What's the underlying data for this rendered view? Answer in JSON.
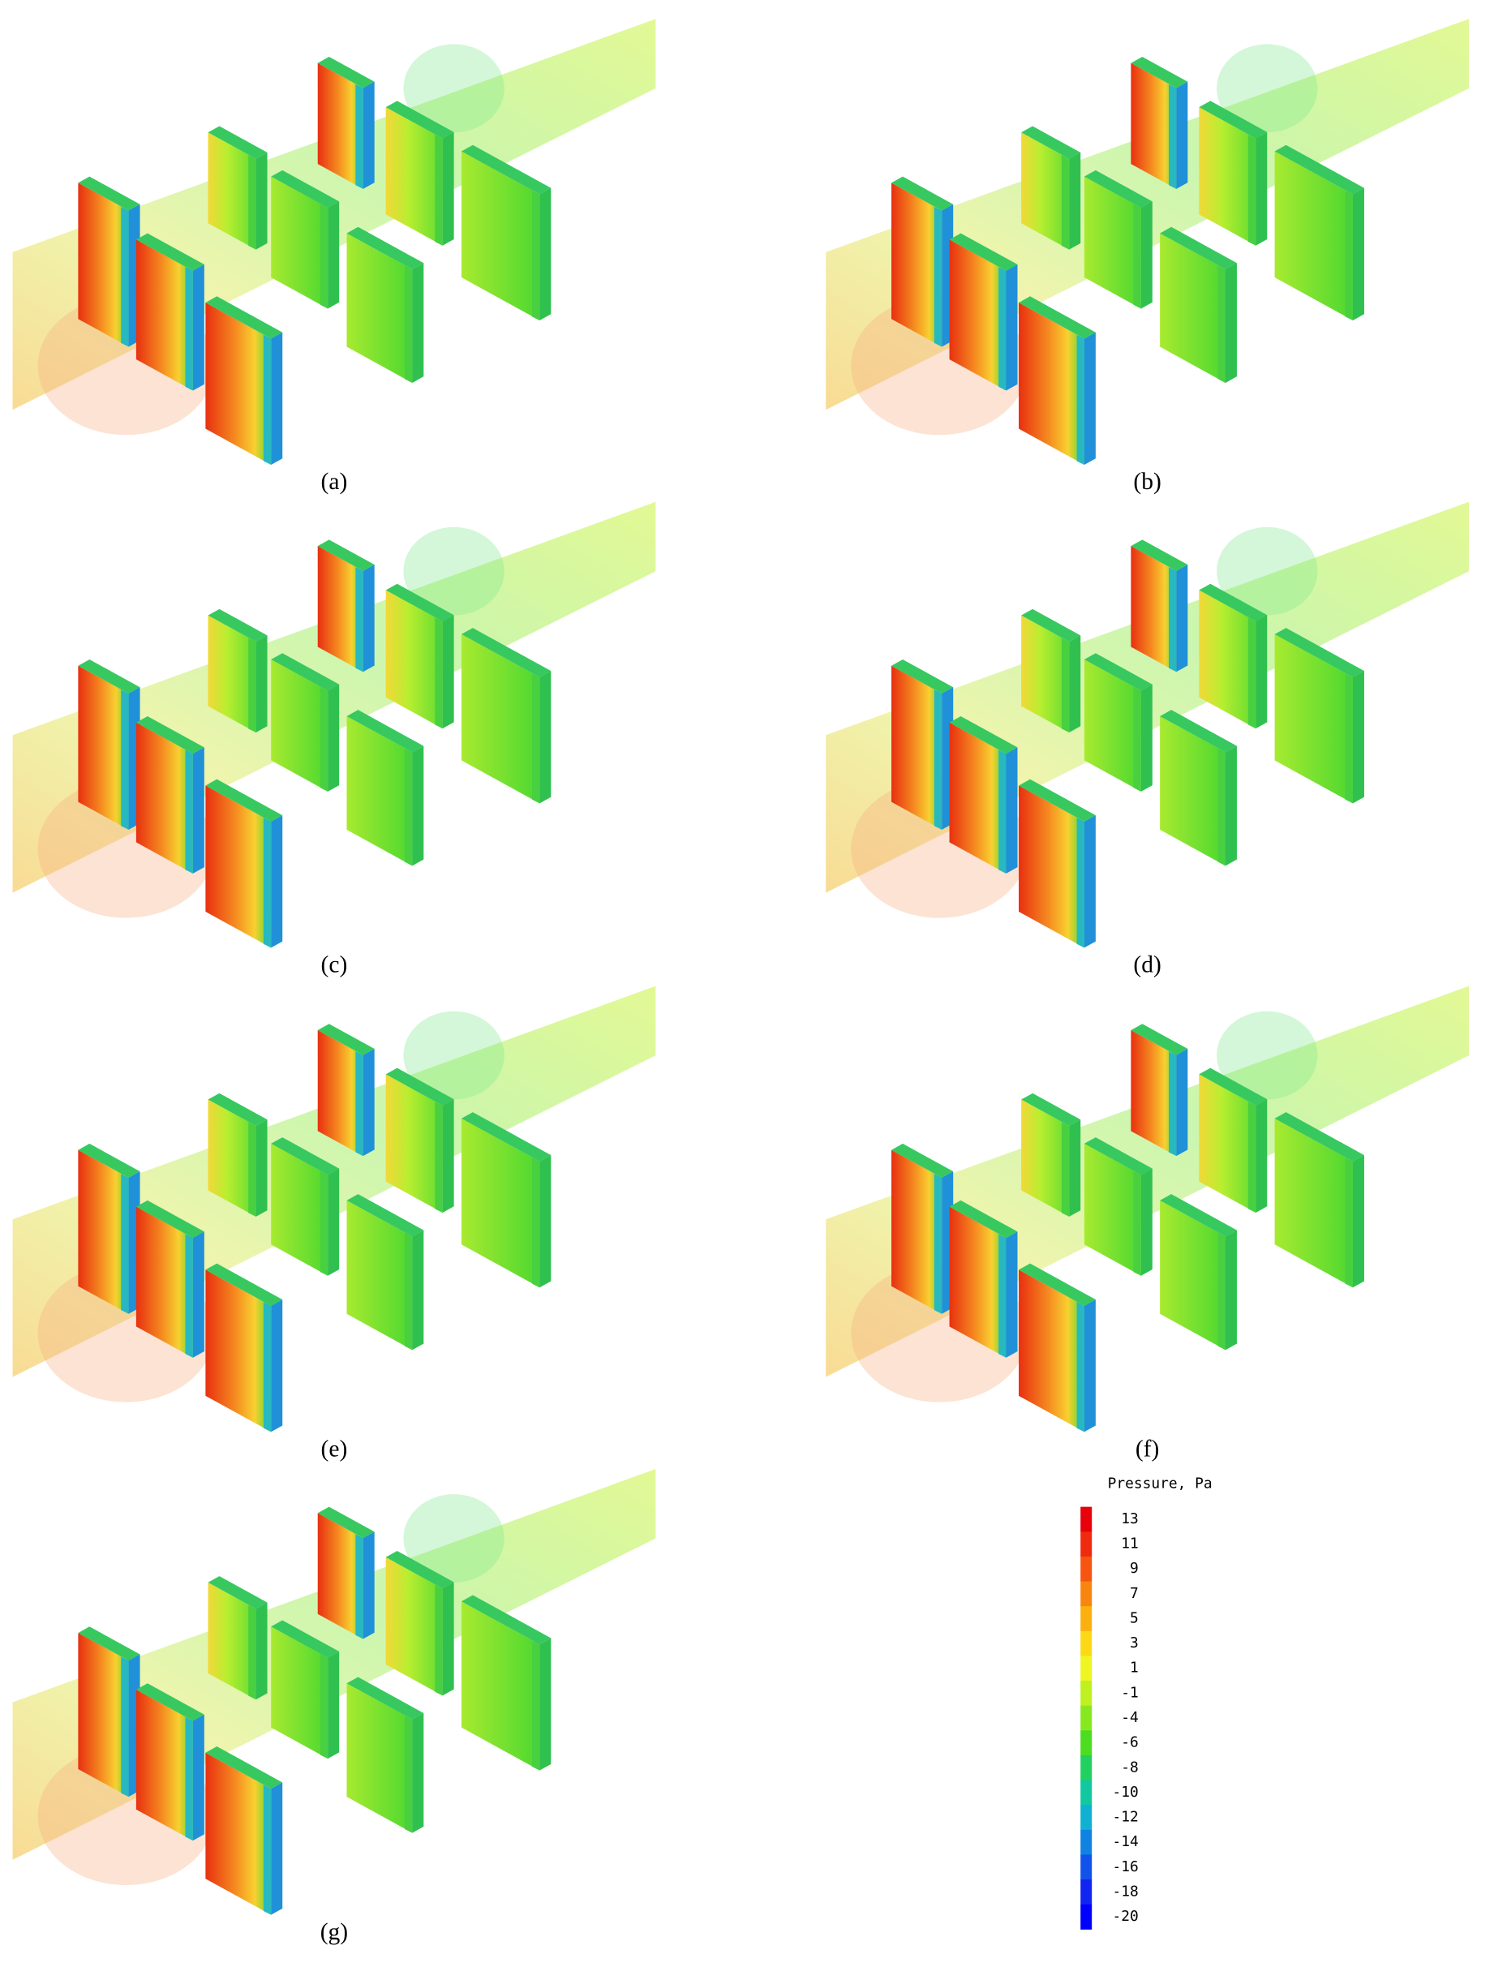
{
  "panels": [
    {
      "label": "(a)"
    },
    {
      "label": "(b)"
    },
    {
      "label": "(c)"
    },
    {
      "label": "(d)"
    },
    {
      "label": "(e)"
    },
    {
      "label": "(f)"
    },
    {
      "label": "(g)"
    }
  ],
  "colorbar": {
    "title": "Pressure, Pa",
    "ticks": [
      13,
      11,
      9,
      7,
      5,
      3,
      1,
      -1,
      -4,
      -6,
      -8,
      -10,
      -12,
      -14,
      -16,
      -18,
      -20
    ],
    "colors": [
      "#e8000b",
      "#f02a0e",
      "#f55510",
      "#f88510",
      "#fbb010",
      "#fdd816",
      "#eef520",
      "#bff020",
      "#88e820",
      "#4cdc20",
      "#22d060",
      "#12c8a0",
      "#10b0d2",
      "#1082e2",
      "#1052ea",
      "#1024f2",
      "#0000ff"
    ]
  }
}
